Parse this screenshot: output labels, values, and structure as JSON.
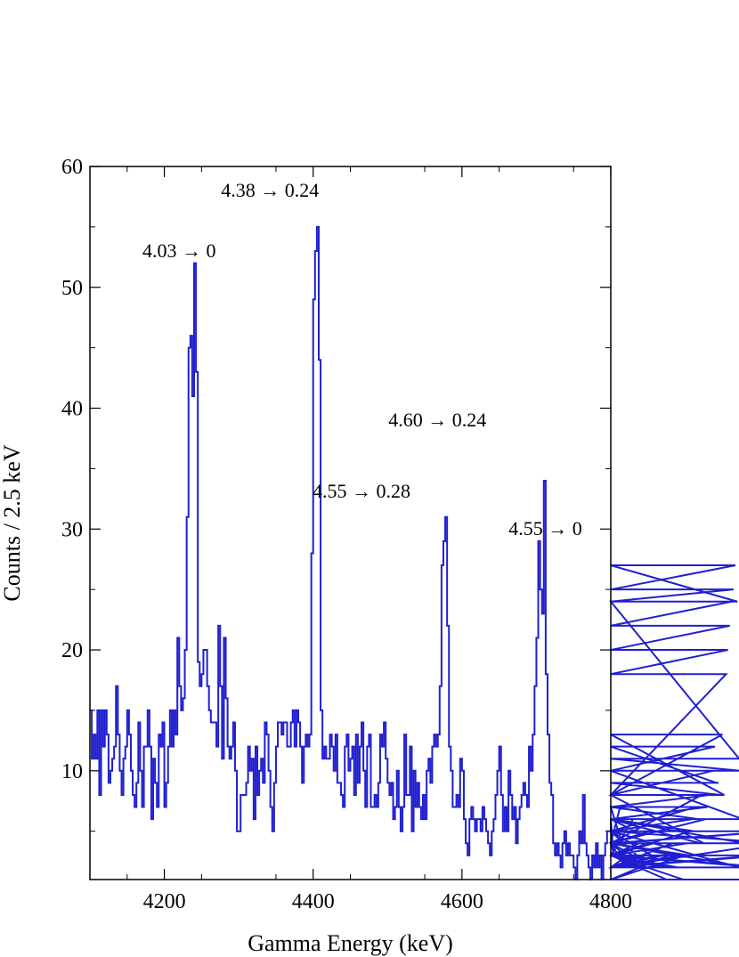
{
  "chart_data": {
    "type": "line",
    "step": true,
    "xlabel": "Gamma Energy (keV)",
    "ylabel": "Counts / 2.5 keV",
    "xlim": [
      4100,
      4800
    ],
    "ylim": [
      1,
      60
    ],
    "x_ticks": [
      4200,
      4400,
      4600,
      4800
    ],
    "y_ticks": [
      10,
      20,
      30,
      40,
      50,
      60
    ],
    "bin_width": 2.5,
    "x_start": 4100,
    "grid": false,
    "line_color": "#1f1fd0",
    "annotations": [
      {
        "text": "4.03 → 0",
        "x": 4220,
        "y": 52.5
      },
      {
        "text": "4.38 → 0.24",
        "x": 4342,
        "y": 57.5
      },
      {
        "text": "4.55 → 0.28",
        "x": 4465,
        "y": 32.6
      },
      {
        "text": "4.60 → 0.24",
        "x": 4567,
        "y": 38.5
      },
      {
        "text": "4.55 → 0",
        "x": 4712,
        "y": 29.5
      }
    ],
    "counts": [
      15,
      11,
      13,
      11,
      15,
      8,
      15,
      12,
      15,
      13,
      9,
      10,
      11,
      12,
      17,
      13,
      10,
      8,
      11,
      12,
      15,
      13,
      10,
      8,
      7,
      9,
      14,
      10,
      7,
      12,
      12,
      15,
      12,
      6,
      11,
      9,
      7,
      13,
      12,
      14,
      7,
      9,
      12,
      15,
      12,
      15,
      13,
      21,
      17,
      15,
      16,
      20,
      31,
      45,
      46,
      41,
      52,
      43,
      19,
      17,
      18,
      20,
      20,
      17,
      15,
      14,
      14,
      14,
      12,
      22,
      17,
      11,
      21,
      16,
      12,
      11,
      12,
      14,
      10,
      5,
      5,
      8,
      8,
      8,
      9,
      12,
      10,
      11,
      6,
      12,
      8,
      10,
      11,
      9,
      14,
      13,
      10,
      7,
      5,
      9,
      12,
      14,
      14,
      13,
      14,
      14,
      12,
      12,
      14,
      15,
      12,
      15,
      14,
      12,
      9,
      12,
      13,
      12,
      13,
      28,
      49,
      53,
      55,
      44,
      15,
      11,
      12,
      11,
      11,
      13,
      12,
      10,
      13,
      9,
      9,
      8,
      7,
      12,
      13,
      10,
      11,
      12,
      8,
      13,
      9,
      12,
      14,
      10,
      7,
      12,
      13,
      7,
      7,
      8,
      7,
      9,
      13,
      12,
      14,
      11,
      9,
      8,
      9,
      6,
      7,
      10,
      7,
      5,
      7,
      13,
      8,
      8,
      12,
      5,
      10,
      7,
      9,
      7,
      6,
      8,
      6,
      10,
      11,
      9,
      12,
      13,
      12,
      13,
      17,
      27,
      29,
      31,
      22,
      12,
      10,
      7,
      7,
      8,
      7,
      11,
      10,
      6,
      4,
      3,
      6,
      7,
      6,
      5,
      6,
      6,
      5,
      7,
      6,
      5,
      4,
      3,
      5,
      6,
      8,
      10,
      12,
      8,
      5,
      7,
      5,
      10,
      8,
      6,
      7,
      4,
      6,
      7,
      8,
      9,
      8,
      7,
      12,
      10,
      13,
      17,
      21,
      29,
      25,
      23,
      34,
      18,
      13,
      9,
      8,
      4,
      3,
      4,
      3,
      2,
      4,
      5,
      3,
      4,
      3,
      3,
      2,
      1,
      3,
      5,
      4,
      8,
      4,
      3,
      2,
      1,
      3,
      2,
      4,
      2,
      3,
      1,
      3,
      4,
      5,
      5,
      6,
      4,
      3,
      3,
      4,
      7,
      4,
      4,
      2,
      3,
      3,
      3,
      6,
      5,
      3,
      4,
      2,
      3,
      2,
      3,
      4,
      5,
      3,
      4,
      2,
      3,
      3,
      2,
      3,
      3,
      1,
      3,
      2,
      4,
      3,
      3,
      2,
      2,
      3,
      1,
      3,
      4,
      3,
      5,
      6,
      5,
      7,
      6,
      4,
      8,
      4,
      6,
      7,
      8,
      8,
      10,
      12,
      9,
      9,
      8,
      13,
      8,
      18,
      20,
      22,
      24,
      25,
      27,
      24,
      11,
      10,
      6,
      4,
      2,
      2,
      2,
      2,
      2,
      2,
      3,
      2,
      2,
      2,
      2,
      2,
      3,
      2,
      4,
      5,
      4,
      5,
      5,
      1
    ]
  }
}
